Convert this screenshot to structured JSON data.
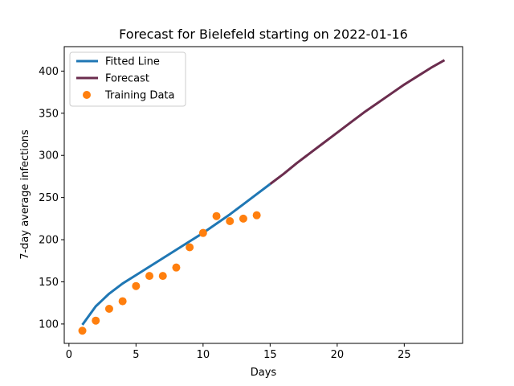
{
  "chart_data": {
    "type": "line",
    "title": "Forecast for Bielefeld starting on 2022-01-16",
    "xlabel": "Days",
    "ylabel": "7-day average infections",
    "xlim": [
      -0.35,
      29.35
    ],
    "ylim": [
      77,
      429
    ],
    "xticks": [
      0,
      5,
      10,
      15,
      20,
      25
    ],
    "yticks": [
      100,
      150,
      200,
      250,
      300,
      350,
      400
    ],
    "grid": false,
    "legend_position": "top-left",
    "series": [
      {
        "name": "Fitted Line",
        "kind": "line",
        "color": "#1f77b4",
        "x": [
          1,
          2,
          3,
          4,
          5,
          6,
          7,
          8,
          9,
          10,
          11,
          12,
          13,
          14,
          15
        ],
        "y": [
          99,
          121,
          136,
          148,
          158,
          168,
          178,
          188,
          198,
          208,
          219,
          230,
          242,
          254,
          266
        ]
      },
      {
        "name": "Forecast",
        "kind": "line",
        "color": "#6b2d4e",
        "x": [
          15,
          16,
          17,
          18,
          19,
          20,
          21,
          22,
          23,
          24,
          25,
          26,
          27,
          28
        ],
        "y": [
          266,
          278,
          291,
          303,
          315,
          327,
          339,
          351,
          362,
          373,
          384,
          394,
          404,
          413
        ]
      },
      {
        "name": "Training Data",
        "kind": "scatter",
        "color": "#ff7f0e",
        "x": [
          1,
          2,
          3,
          4,
          5,
          6,
          7,
          8,
          9,
          10,
          11,
          12,
          13,
          14
        ],
        "y": [
          92,
          104,
          118,
          127,
          145,
          157,
          157,
          167,
          191,
          208,
          228,
          222,
          225,
          229
        ]
      }
    ]
  }
}
